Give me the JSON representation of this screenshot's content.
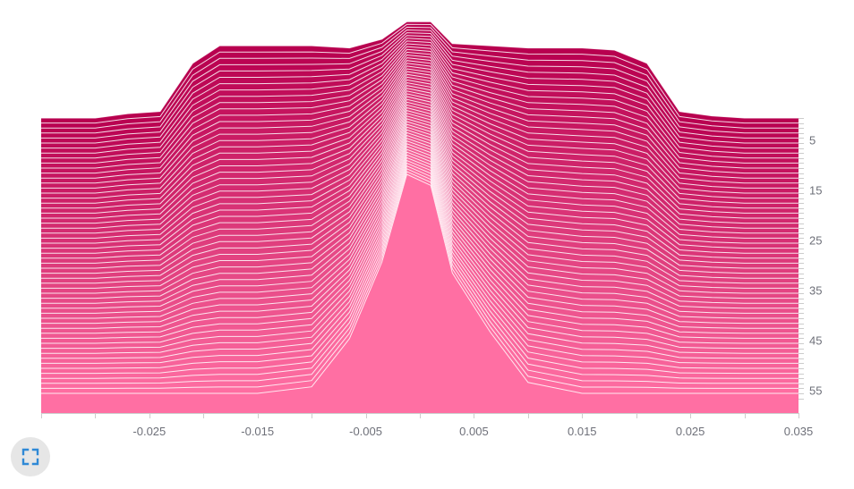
{
  "chart_data": {
    "type": "area",
    "subtype": "ridgeline",
    "series_count": 56,
    "colors": {
      "back": "#b8004f",
      "front": "#ff6fa3",
      "line": "#ffffff",
      "axis": "#cccccc",
      "tick_text": "#6e7079"
    },
    "x_axis": {
      "ticks": [
        -0.035,
        -0.03,
        -0.025,
        -0.02,
        -0.015,
        -0.01,
        -0.005,
        0,
        0.005,
        0.01,
        0.015,
        0.02,
        0.025,
        0.03,
        0.035
      ],
      "tick_labels": [
        "-0.025",
        "-0.015",
        "-0.005",
        "0.005",
        "0.015",
        "0.025",
        "0.035"
      ],
      "label_values": [
        -0.025,
        -0.015,
        -0.005,
        0.005,
        0.015,
        0.025,
        0.035
      ],
      "range": [
        -0.035,
        0.035
      ]
    },
    "y_axis": {
      "position": "right",
      "tick_labels": [
        "5",
        "15",
        "25",
        "35",
        "45",
        "55"
      ],
      "label_values": [
        5,
        15,
        25,
        35,
        45,
        55
      ],
      "range": [
        1,
        56
      ]
    },
    "ridge_profile": {
      "x": [
        -0.035,
        -0.03,
        -0.027,
        -0.024,
        -0.021,
        -0.0185,
        -0.015,
        -0.01,
        -0.0065,
        -0.0035,
        -0.0012,
        0.001,
        0.003,
        0.0065,
        0.01,
        0.015,
        0.018,
        0.021,
        0.024,
        0.027,
        0.03,
        0.035
      ],
      "first_row": [
        0,
        0,
        0.02,
        0.03,
        0.25,
        0.33,
        0.33,
        0.33,
        0.32,
        0.36,
        0.44,
        0.44,
        0.34,
        0.33,
        0.32,
        0.32,
        0.31,
        0.25,
        0.03,
        0.01,
        0,
        0
      ],
      "last_row": [
        0,
        0,
        0,
        0,
        0,
        0,
        0,
        0.03,
        0.25,
        0.6,
        1.0,
        0.95,
        0.55,
        0.28,
        0.05,
        0,
        0,
        0,
        0,
        0,
        0,
        0
      ]
    },
    "fullscreen_icon": "fullscreen-icon"
  }
}
